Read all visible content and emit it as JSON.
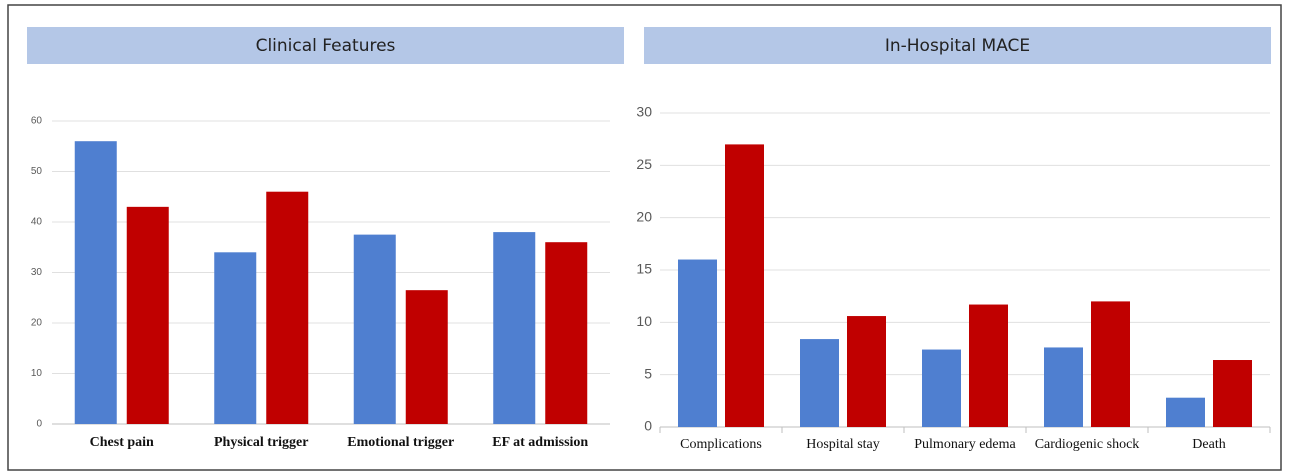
{
  "chart_data": [
    {
      "type": "bar",
      "title": "Clinical Features",
      "categories": [
        "Chest pain",
        "Physical trigger",
        "Emotional  trigger",
        "EF at admission"
      ],
      "series": [
        {
          "color": "#4f7fd0",
          "values": [
            56,
            34,
            37.5,
            38
          ]
        },
        {
          "color": "#c00000",
          "values": [
            43,
            46,
            26.5,
            36
          ]
        }
      ],
      "ylim": [
        0,
        60
      ],
      "yticks": [
        0,
        10,
        20,
        30,
        40,
        50,
        60
      ],
      "grid": true
    },
    {
      "type": "bar",
      "title": "In-Hospital MACE",
      "categories": [
        "Complications",
        "Hospital stay",
        "Pulmonary edema",
        "Cardiogenic shock",
        "Death"
      ],
      "series": [
        {
          "color": "#4f7fd0",
          "values": [
            16,
            8.4,
            7.4,
            7.6,
            2.8
          ]
        },
        {
          "color": "#c00000",
          "values": [
            27,
            10.6,
            11.7,
            12,
            6.4
          ]
        }
      ],
      "ylim": [
        0,
        30
      ],
      "yticks": [
        0,
        5,
        10,
        15,
        20,
        25,
        30
      ],
      "grid": true
    }
  ]
}
